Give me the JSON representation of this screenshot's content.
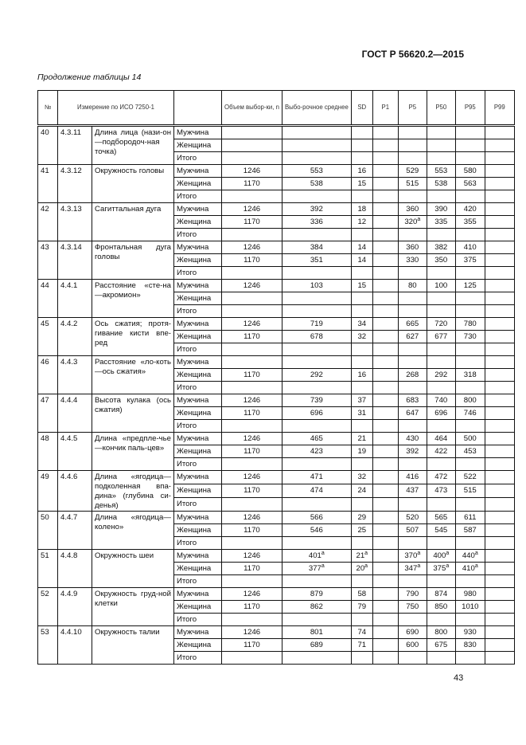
{
  "document_id": "ГОСТ Р 56620.2—2015",
  "caption": "Продолжение таблицы 14",
  "page_number": "43",
  "table": {
    "headers": [
      "№",
      "Измерение по ИСО 7250-1",
      "",
      "Объем выбор-ки, n",
      "Выбо-рочное среднее",
      "SD",
      "P1",
      "P5",
      "P50",
      "P95",
      "P99"
    ],
    "groups": [
      {
        "no": "40",
        "code": "4.3.11",
        "name": "Длина лица (нази-он—подбородоч-ная точка)",
        "rows": [
          [
            "Мужчина",
            "",
            "",
            "",
            "",
            "",
            "",
            "",
            ""
          ],
          [
            "Женщина",
            "",
            "",
            "",
            "",
            "",
            "",
            "",
            ""
          ],
          [
            "Итого",
            "",
            "",
            "",
            "",
            "",
            "",
            "",
            ""
          ]
        ]
      },
      {
        "no": "41",
        "code": "4.3.12",
        "name": "Окружность головы",
        "rows": [
          [
            "Мужчина",
            "1246",
            "553",
            "16",
            "",
            "529",
            "553",
            "580",
            ""
          ],
          [
            "Женщина",
            "1170",
            "538",
            "15",
            "",
            "515",
            "538",
            "563",
            ""
          ],
          [
            "Итого",
            "",
            "",
            "",
            "",
            "",
            "",
            "",
            ""
          ]
        ]
      },
      {
        "no": "42",
        "code": "4.3.13",
        "name": "Сагиттальная дуга",
        "rows": [
          [
            "Мужчина",
            "1246",
            "392",
            "18",
            "",
            "360",
            "390",
            "420",
            ""
          ],
          [
            "Женщина",
            "1170",
            "336",
            "12",
            "",
            "320ᵃ",
            "335",
            "355",
            ""
          ],
          [
            "Итого",
            "",
            "",
            "",
            "",
            "",
            "",
            "",
            ""
          ]
        ]
      },
      {
        "no": "43",
        "code": "4.3.14",
        "name": "Фронтальная дуга головы",
        "rows": [
          [
            "Мужчина",
            "1246",
            "384",
            "14",
            "",
            "360",
            "382",
            "410",
            ""
          ],
          [
            "Женщина",
            "1170",
            "351",
            "14",
            "",
            "330",
            "350",
            "375",
            ""
          ],
          [
            "Итого",
            "",
            "",
            "",
            "",
            "",
            "",
            "",
            ""
          ]
        ]
      },
      {
        "no": "44",
        "code": "4.4.1",
        "name": "Расстояние «сте-на—акромион»",
        "rows": [
          [
            "Мужчина",
            "1246",
            "103",
            "15",
            "",
            "80",
            "100",
            "125",
            ""
          ],
          [
            "Женщина",
            "",
            "",
            "",
            "",
            "",
            "",
            "",
            ""
          ],
          [
            "Итого",
            "",
            "",
            "",
            "",
            "",
            "",
            "",
            ""
          ]
        ]
      },
      {
        "no": "45",
        "code": "4.4.2",
        "name": "Ось сжатия; протя-гивание кисти впе-ред",
        "rows": [
          [
            "Мужчина",
            "1246",
            "719",
            "34",
            "",
            "665",
            "720",
            "780",
            ""
          ],
          [
            "Женщина",
            "1170",
            "678",
            "32",
            "",
            "627",
            "677",
            "730",
            ""
          ],
          [
            "Итого",
            "",
            "",
            "",
            "",
            "",
            "",
            "",
            ""
          ]
        ]
      },
      {
        "no": "46",
        "code": "4.4.3",
        "name": "Расстояние «ло-коть—ось сжатия»",
        "rows": [
          [
            "Мужчина",
            "",
            "",
            "",
            "",
            "",
            "",
            "",
            ""
          ],
          [
            "Женщина",
            "1170",
            "292",
            "16",
            "",
            "268",
            "292",
            "318",
            ""
          ],
          [
            "Итого",
            "",
            "",
            "",
            "",
            "",
            "",
            "",
            ""
          ]
        ]
      },
      {
        "no": "47",
        "code": "4.4.4",
        "name": "Высота кулака (ось сжатия)",
        "rows": [
          [
            "Мужчина",
            "1246",
            "739",
            "37",
            "",
            "683",
            "740",
            "800",
            ""
          ],
          [
            "Женщина",
            "1170",
            "696",
            "31",
            "",
            "647",
            "696",
            "746",
            ""
          ],
          [
            "Итого",
            "",
            "",
            "",
            "",
            "",
            "",
            "",
            ""
          ]
        ]
      },
      {
        "no": "48",
        "code": "4.4.5",
        "name": "Длина «предпле-чье—кончик паль-цев»",
        "rows": [
          [
            "Мужчина",
            "1246",
            "465",
            "21",
            "",
            "430",
            "464",
            "500",
            ""
          ],
          [
            "Женщина",
            "1170",
            "423",
            "19",
            "",
            "392",
            "422",
            "453",
            ""
          ],
          [
            "Итого",
            "",
            "",
            "",
            "",
            "",
            "",
            "",
            ""
          ]
        ]
      },
      {
        "no": "49",
        "code": "4.4.6",
        "name": "Длина «ягодица—подколенная впа-дина» (глубина си-денья)",
        "rows": [
          [
            "Мужчина",
            "1246",
            "471",
            "32",
            "",
            "416",
            "472",
            "522",
            ""
          ],
          [
            "Женщина",
            "1170",
            "474",
            "24",
            "",
            "437",
            "473",
            "515",
            ""
          ],
          [
            "Итого",
            "",
            "",
            "",
            "",
            "",
            "",
            "",
            ""
          ]
        ]
      },
      {
        "no": "50",
        "code": "4.4.7",
        "name": "Длина «ягодица—колено»",
        "rows": [
          [
            "Мужчина",
            "1246",
            "566",
            "29",
            "",
            "520",
            "565",
            "611",
            ""
          ],
          [
            "Женщина",
            "1170",
            "546",
            "25",
            "",
            "507",
            "545",
            "587",
            ""
          ],
          [
            "Итого",
            "",
            "",
            "",
            "",
            "",
            "",
            "",
            ""
          ]
        ]
      },
      {
        "no": "51",
        "code": "4.4.8",
        "name": "Окружность шеи",
        "rows": [
          [
            "Мужчина",
            "1246",
            "401ᵃ",
            "21ᵃ",
            "",
            "370ᵃ",
            "400ᵃ",
            "440ᵃ",
            ""
          ],
          [
            "Женщина",
            "1170",
            "377ᵃ",
            "20ᵃ",
            "",
            "347ᵃ",
            "375ᵃ",
            "410ᵃ",
            ""
          ],
          [
            "Итого",
            "",
            "",
            "",
            "",
            "",
            "",
            "",
            ""
          ]
        ]
      },
      {
        "no": "52",
        "code": "4.4.9",
        "name": "Окружность груд-ной клетки",
        "rows": [
          [
            "Мужчина",
            "1246",
            "879",
            "58",
            "",
            "790",
            "874",
            "980",
            ""
          ],
          [
            "Женщина",
            "1170",
            "862",
            "79",
            "",
            "750",
            "850",
            "1010",
            ""
          ],
          [
            "Итого",
            "",
            "",
            "",
            "",
            "",
            "",
            "",
            ""
          ]
        ]
      },
      {
        "no": "53",
        "code": "4.4.10",
        "name": "Окружность талии",
        "rows": [
          [
            "Мужчина",
            "1246",
            "801",
            "74",
            "",
            "690",
            "800",
            "930",
            ""
          ],
          [
            "Женщина",
            "1170",
            "689",
            "71",
            "",
            "600",
            "675",
            "830",
            ""
          ],
          [
            "Итого",
            "",
            "",
            "",
            "",
            "",
            "",
            "",
            ""
          ]
        ]
      }
    ]
  }
}
